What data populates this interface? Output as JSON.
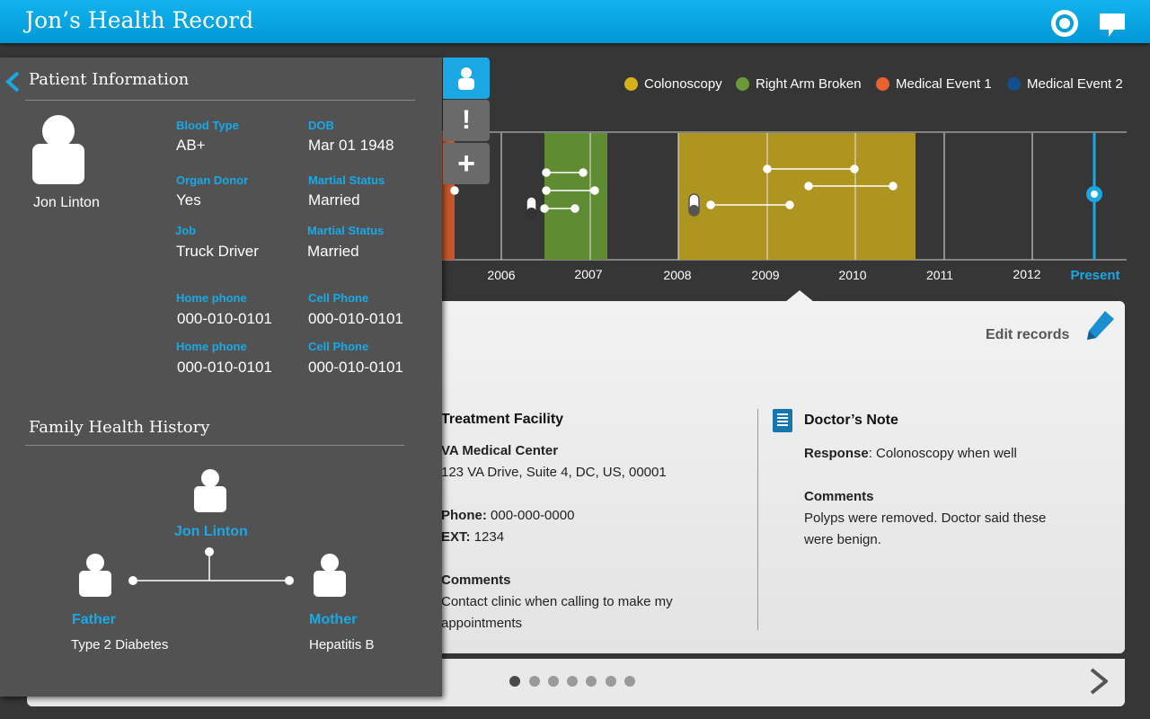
{
  "app": {
    "title": "Jon’s Health Record"
  },
  "legend": [
    {
      "label": "Colonoscopy",
      "color": "#d6b11b"
    },
    {
      "label": "Right Arm Broken",
      "color": "#6a9a38"
    },
    {
      "label": "Medical Event 1",
      "color": "#e9612c"
    },
    {
      "label": "Medical Event 2",
      "color": "#124f8c"
    }
  ],
  "timeline": {
    "years": [
      "2006",
      "2007",
      "2008",
      "2009",
      "2010",
      "2011",
      "2012"
    ],
    "present_label": "Present"
  },
  "details": {
    "edit_label": "Edit records",
    "facility": {
      "title": "Treatment Facility",
      "name": "VA Medical Center",
      "address": "123 VA Drive, Suite 4, DC, US, 00001",
      "phone_label": "Phone:",
      "phone": "000-000-0000",
      "ext_label": "EXT:",
      "ext": "1234",
      "comments_label": "Comments",
      "comments": "Contact clinic when calling to make my appointments"
    },
    "note": {
      "title": "Doctor’s Note",
      "response_label": "Response",
      "response": ": Colonoscopy when well",
      "comments_label": "Comments",
      "comments": "Polyps were removed. Doctor said these were benign."
    }
  },
  "pager": {
    "count": 7,
    "active": 0
  },
  "patient": {
    "heading": "Patient Information",
    "name": "Jon Linton",
    "fields": {
      "blood_type_label": "Blood Type",
      "blood_type": "AB+",
      "dob_label": "DOB",
      "dob": "Mar 01 1948",
      "organ_donor_label": "Organ Donor",
      "organ_donor": "Yes",
      "marital_label": "Martial Status",
      "marital": "Married",
      "job_label": "Job",
      "job": "Truck Driver",
      "marital2_label": "Martial Status",
      "marital2": "Married",
      "home_phone_label": "Home phone",
      "home_phone": "000-010-0101",
      "cell_phone_label": "Cell Phone",
      "cell_phone": "000-010-0101",
      "home_phone2_label": "Home phone",
      "home_phone2": "000-010-0101",
      "cell_phone2_label": "Cell Phone",
      "cell_phone2": "000-010-0101"
    }
  },
  "family": {
    "heading": "Family Health History",
    "self_name": "Jon Linton",
    "father_label": "Father",
    "father_condition": "Type 2 Diabetes",
    "mother_label": "Mother",
    "mother_condition": "Hepatitis B"
  }
}
